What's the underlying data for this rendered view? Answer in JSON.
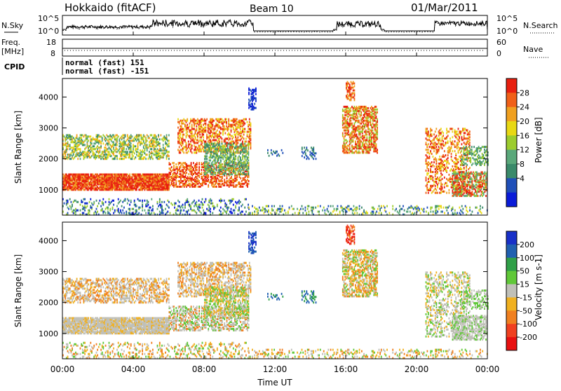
{
  "header": {
    "title": "Hokkaido (fitACF)",
    "beam": "Beam 10",
    "date": "01/Mar/2011"
  },
  "noise_panel": {
    "left_label": "N.Sky",
    "right_label": "N.Search",
    "tick_top": "10^5",
    "tick_bottom": "10^0",
    "tick_top_right": "10^5",
    "tick_bottom_right": "10^0"
  },
  "freq_panel": {
    "left_label_1": "Freq.",
    "left_label_2": "[MHz]",
    "right_label": "Nave",
    "tick_left_top": "18",
    "tick_left_bottom": "8",
    "tick_right_top": "60",
    "tick_right_bottom": "0"
  },
  "cpid_panel": {
    "label": "CPID",
    "line1": "normal (fast) 151",
    "line2": "normal (fast) -151"
  },
  "colors": {
    "power": [
      "#0a1bd8",
      "#1f4fb8",
      "#3a8a6a",
      "#5aa87a",
      "#9ccc2e",
      "#e8d814",
      "#f0a020",
      "#f06018",
      "#e82010"
    ],
    "velocity": [
      "#1830c8",
      "#2060b0",
      "#30a048",
      "#60c838",
      "#c0c0b8",
      "#f0b020",
      "#f08020",
      "#f04020",
      "#e81010"
    ]
  },
  "chart_data": [
    {
      "type": "heatmap",
      "title": "Power",
      "ylabel": "Slant Range [km]",
      "ylim": [
        180,
        4600
      ],
      "xlim": [
        0,
        24
      ],
      "yticks": [
        "1000",
        "2000",
        "3000",
        "4000"
      ],
      "colorbar_label": "Power [dB]",
      "colorbar_ticks": [
        "4",
        "8",
        "12",
        "16",
        "20",
        "24",
        "28"
      ],
      "colorbar_range": [
        0,
        32
      ]
    },
    {
      "type": "heatmap",
      "title": "Velocity",
      "ylabel": "Slant Range [km]",
      "ylim": [
        180,
        4600
      ],
      "xlim": [
        0,
        24
      ],
      "yticks": [
        "1000",
        "2000",
        "3000",
        "4000"
      ],
      "xticks": [
        "00:00",
        "04:00",
        "08:00",
        "12:00",
        "16:00",
        "20:00",
        "00:00"
      ],
      "xlabel": "Time UT",
      "colorbar_label": "Velocity [m s-1]",
      "colorbar_ticks": [
        "200",
        "100",
        "50",
        "15",
        "-15",
        "-50",
        "-100",
        "-200"
      ]
    }
  ]
}
